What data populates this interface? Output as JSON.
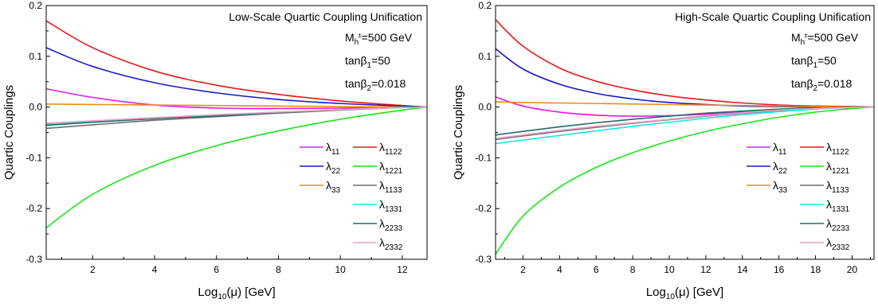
{
  "chart_data": [
    {
      "type": "line",
      "title": "Low-Scale Quartic Coupling Unification",
      "xlabel": "Log10(μ) [GeV]",
      "ylabel": "Quartic Couplings",
      "xlim": [
        0.5,
        12.8
      ],
      "ylim": [
        -0.3,
        0.2
      ],
      "xticks": [
        2,
        4,
        6,
        8,
        10,
        12
      ],
      "yticks": [
        -0.3,
        -0.2,
        -0.1,
        0.0,
        0.1,
        0.2
      ],
      "ytick_labels": [
        "-0.3",
        "-0.2",
        "-0.1",
        "0.0",
        "0.1",
        "0.2"
      ],
      "legend_position": "bottom-right",
      "annotations": [
        {
          "main": "M",
          "sub": "h",
          "sup": "±",
          "tail": "=500 GeV"
        },
        {
          "main": "tanβ",
          "sub": "1",
          "tail": "=50"
        },
        {
          "main": "tanβ",
          "sub": "2",
          "tail": "=0.018"
        }
      ],
      "series": [
        {
          "name": "λ11",
          "base": "λ",
          "sub": "11",
          "color": "#e619e6",
          "x": [
            0.5,
            2,
            4,
            6,
            8,
            10,
            12,
            12.8
          ],
          "values": [
            0.036,
            0.019,
            0.004,
            -0.002,
            -0.003,
            -0.002,
            -0.001,
            0.0
          ]
        },
        {
          "name": "λ1122",
          "base": "λ",
          "sub": "1122",
          "color": "#e61919",
          "x": [
            0.5,
            2,
            4,
            6,
            8,
            10,
            12,
            12.8
          ],
          "values": [
            0.17,
            0.117,
            0.071,
            0.043,
            0.025,
            0.012,
            0.003,
            0.0
          ]
        },
        {
          "name": "λ22",
          "base": "λ",
          "sub": "22",
          "color": "#1919c8",
          "x": [
            0.5,
            2,
            4,
            6,
            8,
            10,
            12,
            12.8
          ],
          "values": [
            0.117,
            0.08,
            0.048,
            0.028,
            0.015,
            0.007,
            0.002,
            0.0
          ]
        },
        {
          "name": "λ1221",
          "base": "λ",
          "sub": "1221",
          "color": "#19e619",
          "x": [
            0.5,
            2,
            4,
            6,
            8,
            10,
            12,
            12.8
          ],
          "values": [
            -0.238,
            -0.172,
            -0.115,
            -0.076,
            -0.047,
            -0.024,
            -0.006,
            0.0
          ]
        },
        {
          "name": "λ33",
          "base": "λ",
          "sub": "33",
          "color": "#ee8c19",
          "x": [
            0.5,
            2,
            4,
            6,
            8,
            10,
            12,
            12.8
          ],
          "values": [
            0.006,
            0.005,
            0.004,
            0.003,
            0.002,
            0.001,
            0.0,
            0.0
          ]
        },
        {
          "name": "λ1133",
          "base": "λ",
          "sub": "1133",
          "color": "#6e6e6e",
          "x": [
            0.5,
            2,
            4,
            6,
            8,
            10,
            12,
            12.8
          ],
          "values": [
            -0.042,
            -0.035,
            -0.026,
            -0.019,
            -0.012,
            -0.006,
            -0.001,
            0.0
          ]
        },
        {
          "name": "λ1331",
          "base": "λ",
          "sub": "1331",
          "color": "#19e6e6",
          "x": [
            0.5,
            2,
            4,
            6,
            8,
            10,
            12,
            12.8
          ],
          "values": [
            -0.034,
            -0.029,
            -0.022,
            -0.016,
            -0.01,
            -0.005,
            -0.001,
            0.0
          ]
        },
        {
          "name": "λ2233",
          "base": "λ",
          "sub": "2233",
          "color": "#1e6e64",
          "x": [
            0.5,
            2,
            4,
            6,
            8,
            10,
            12,
            12.8
          ],
          "values": [
            -0.036,
            -0.03,
            -0.023,
            -0.017,
            -0.011,
            -0.005,
            -0.001,
            0.0
          ]
        },
        {
          "name": "λ2332",
          "base": "λ",
          "sub": "2332",
          "color": "#f0a0c8",
          "x": [
            0.5,
            2,
            4,
            6,
            8,
            10,
            12,
            12.8
          ],
          "values": [
            -0.032,
            -0.027,
            -0.021,
            -0.015,
            -0.01,
            -0.005,
            -0.001,
            0.0
          ]
        }
      ]
    },
    {
      "type": "line",
      "title": "High-Scale Quartic Coupling Unification",
      "xlabel": "Log10(μ) [GeV]",
      "ylabel": "Quartic Couplings",
      "xlim": [
        0.5,
        21.2
      ],
      "ylim": [
        -0.3,
        0.2
      ],
      "xticks": [
        2,
        4,
        6,
        8,
        10,
        12,
        14,
        16,
        18,
        20
      ],
      "yticks": [
        -0.3,
        -0.2,
        -0.1,
        0.0,
        0.1,
        0.2
      ],
      "ytick_labels": [
        "-0.3",
        "-0.2",
        "-0.1",
        "0.0",
        "0.1",
        "0.2"
      ],
      "legend_position": "bottom-right",
      "annotations": [
        {
          "main": "M",
          "sub": "h",
          "sup": "±",
          "tail": "=500 GeV"
        },
        {
          "main": "tanβ",
          "sub": "1",
          "tail": "=50"
        },
        {
          "main": "tanβ",
          "sub": "2",
          "tail": "=0.018"
        }
      ],
      "series": [
        {
          "name": "λ11",
          "base": "λ",
          "sub": "11",
          "color": "#e619e6",
          "x": [
            0.5,
            2,
            4,
            6,
            8,
            10,
            12,
            14,
            16,
            18,
            20,
            21.2
          ],
          "values": [
            0.02,
            0.002,
            -0.01,
            -0.016,
            -0.018,
            -0.017,
            -0.014,
            -0.01,
            -0.006,
            -0.003,
            -0.001,
            0.0
          ]
        },
        {
          "name": "λ1122",
          "base": "λ",
          "sub": "1122",
          "color": "#e61919",
          "x": [
            0.5,
            2,
            4,
            6,
            8,
            10,
            12,
            14,
            16,
            18,
            20,
            21.2
          ],
          "values": [
            0.172,
            0.12,
            0.077,
            0.051,
            0.034,
            0.022,
            0.014,
            0.008,
            0.004,
            0.002,
            0.001,
            0.0
          ]
        },
        {
          "name": "λ22",
          "base": "λ",
          "sub": "22",
          "color": "#1919c8",
          "x": [
            0.5,
            2,
            4,
            6,
            8,
            10,
            12,
            14,
            16,
            18,
            20,
            21.2
          ],
          "values": [
            0.115,
            0.075,
            0.045,
            0.027,
            0.016,
            0.009,
            0.005,
            0.002,
            0.001,
            0.0,
            0.0,
            0.0
          ]
        },
        {
          "name": "λ1221",
          "base": "λ",
          "sub": "1221",
          "color": "#19e619",
          "x": [
            0.5,
            2,
            4,
            6,
            8,
            10,
            12,
            14,
            16,
            18,
            20,
            21.2
          ],
          "values": [
            -0.29,
            -0.215,
            -0.158,
            -0.119,
            -0.09,
            -0.067,
            -0.048,
            -0.033,
            -0.02,
            -0.01,
            -0.003,
            0.0
          ]
        },
        {
          "name": "λ33",
          "base": "λ",
          "sub": "33",
          "color": "#ee8c19",
          "x": [
            0.5,
            2,
            4,
            6,
            8,
            10,
            12,
            14,
            16,
            18,
            20,
            21.2
          ],
          "values": [
            0.01,
            0.009,
            0.008,
            0.007,
            0.006,
            0.005,
            0.004,
            0.003,
            0.002,
            0.001,
            0.0,
            0.0
          ]
        },
        {
          "name": "λ1133",
          "base": "λ",
          "sub": "1133",
          "color": "#6e6e6e",
          "x": [
            0.5,
            2,
            4,
            6,
            8,
            10,
            12,
            14,
            16,
            18,
            20,
            21.2
          ],
          "values": [
            -0.064,
            -0.057,
            -0.048,
            -0.04,
            -0.032,
            -0.025,
            -0.018,
            -0.012,
            -0.007,
            -0.003,
            -0.001,
            0.0
          ]
        },
        {
          "name": "λ1331",
          "base": "λ",
          "sub": "1331",
          "color": "#19e6e6",
          "x": [
            0.5,
            2,
            4,
            6,
            8,
            10,
            12,
            14,
            16,
            18,
            20,
            21.2
          ],
          "values": [
            -0.072,
            -0.065,
            -0.056,
            -0.047,
            -0.038,
            -0.03,
            -0.022,
            -0.015,
            -0.009,
            -0.004,
            -0.001,
            0.0
          ]
        },
        {
          "name": "λ2233",
          "base": "λ",
          "sub": "2233",
          "color": "#1e6e64",
          "x": [
            0.5,
            2,
            4,
            6,
            8,
            10,
            12,
            14,
            16,
            18,
            20,
            21.2
          ],
          "values": [
            -0.055,
            -0.048,
            -0.039,
            -0.031,
            -0.024,
            -0.018,
            -0.012,
            -0.008,
            -0.004,
            -0.002,
            -0.001,
            0.0
          ]
        },
        {
          "name": "λ2332",
          "base": "λ",
          "sub": "2332",
          "color": "#f0a0c8",
          "x": [
            0.5,
            2,
            4,
            6,
            8,
            10,
            12,
            14,
            16,
            18,
            20,
            21.2
          ],
          "values": [
            -0.062,
            -0.055,
            -0.046,
            -0.038,
            -0.031,
            -0.024,
            -0.017,
            -0.011,
            -0.006,
            -0.003,
            -0.001,
            0.0
          ]
        }
      ]
    }
  ]
}
